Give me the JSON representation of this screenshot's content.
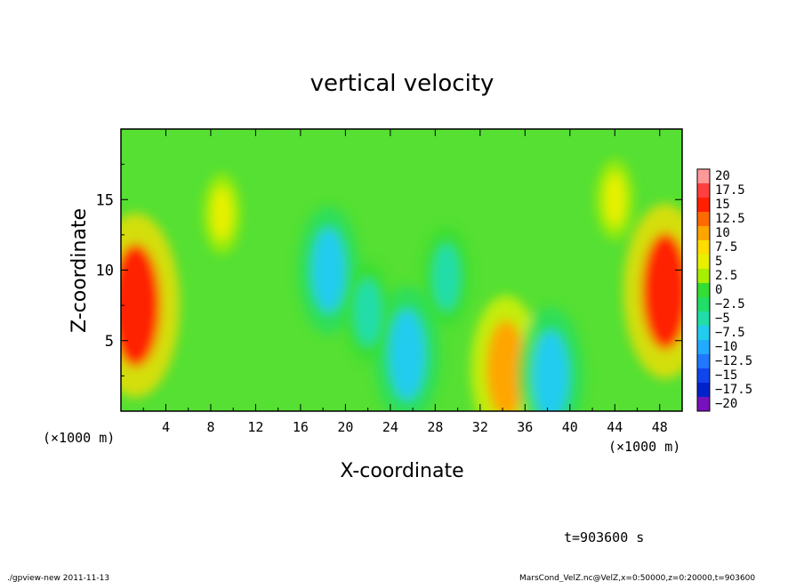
{
  "chart_data": {
    "type": "heatmap",
    "title": "vertical velocity",
    "xlabel": "X-coordinate",
    "ylabel": "Z-coordinate",
    "x_unit": "(×1000 m)",
    "y_unit": "(×1000 m)",
    "xlim": [
      0,
      50
    ],
    "ylim": [
      0,
      20
    ],
    "x_ticks": [
      "4",
      "8",
      "12",
      "16",
      "20",
      "24",
      "28",
      "32",
      "36",
      "40",
      "44",
      "48"
    ],
    "y_ticks": [
      "5",
      "10",
      "15"
    ],
    "colorbar": {
      "levels": [
        "20",
        "17.5",
        "15",
        "12.5",
        "10",
        "7.5",
        "5",
        "2.5",
        "0",
        "−2.5",
        "−5",
        "−7.5",
        "−10",
        "−12.5",
        "−15",
        "−17.5",
        "−20"
      ],
      "colors": [
        "#ff9999",
        "#ff4040",
        "#ff2000",
        "#ff6a00",
        "#ffa500",
        "#ffdd00",
        "#e8f000",
        "#aaee00",
        "#33dd33",
        "#22dd66",
        "#22ddaa",
        "#22ccee",
        "#22aaff",
        "#2277ff",
        "#1144ee",
        "#0022cc",
        "#7711bb"
      ]
    },
    "features": [
      {
        "x": 1.3,
        "z": 7.5,
        "w": 14
      },
      {
        "x": 48.5,
        "z": 8.5,
        "w": 13
      },
      {
        "x": 34.3,
        "z": 3.0,
        "w": 10
      },
      {
        "x": 18.5,
        "z": 10.0,
        "w": -8
      },
      {
        "x": 25.5,
        "z": 4.0,
        "w": -9
      },
      {
        "x": 38.3,
        "z": 2.5,
        "w": -9
      },
      {
        "x": 22.0,
        "z": 7.0,
        "w": -5
      },
      {
        "x": 29.0,
        "z": 9.5,
        "w": -5
      },
      {
        "x": 44.0,
        "z": 15.0,
        "w": 3
      },
      {
        "x": 9.0,
        "z": 14.0,
        "w": 3
      }
    ]
  },
  "annotations": {
    "time": "t=903600 s",
    "footer_left": "./gpview-new   2011-11-13",
    "footer_right": "MarsCond_VelZ.nc@VelZ,x=0:50000,z=0:20000,t=903600"
  }
}
